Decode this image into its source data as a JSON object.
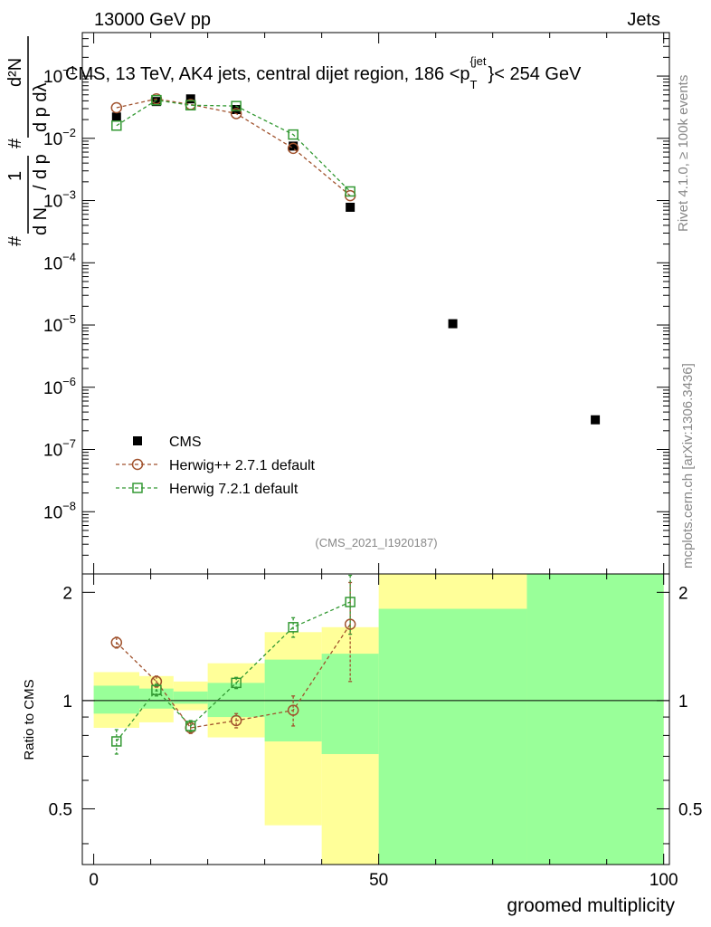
{
  "header": {
    "left": "13000 GeV pp",
    "right": "Jets"
  },
  "side": {
    "rivet": "Rivet 4.1.0, ≥ 100k events",
    "mcplots": "mcplots.cern.ch [arXiv:1306.3436]"
  },
  "analysis_tag": "(CMS_2021_I1920187)",
  "chart_data": {
    "type": "scatter",
    "title": "CMS, 13 TeV, AK4 jets, central dijet region, 186 < p_T^{jet} < 254 GeV",
    "title_parts": {
      "main": "CMS, 13 TeV, AK4 jets, central dijet region, 186 <p",
      "sub": "T",
      "sup": "{jet",
      "close": "}",
      "tail": "< 254 GeV"
    },
    "ylabel_parts": {
      "one": "1",
      "hash": "#",
      "dN": "d N",
      "slash": "/",
      "dpT": "d p",
      "sub": "T",
      "d2N": "d²N",
      "dpTdl": "d p  dλ"
    },
    "xlabel": "groomed multiplicity",
    "xlim": [
      -2,
      101
    ],
    "ylim_main": [
      1e-09,
      0.5
    ],
    "ylim_ratio": [
      0.35,
      2.25
    ],
    "xticks": [
      {
        "v": 0,
        "label": "0"
      },
      {
        "v": 50,
        "label": "50"
      },
      {
        "v": 100,
        "label": "100"
      }
    ],
    "yticks_main": [
      {
        "exp": -1,
        "label": "10",
        "sup": "−1"
      },
      {
        "exp": -2,
        "label": "10",
        "sup": "−2"
      },
      {
        "exp": -3,
        "label": "10",
        "sup": "−3"
      },
      {
        "exp": -4,
        "label": "10",
        "sup": "−4"
      },
      {
        "exp": -5,
        "label": "10",
        "sup": "−5"
      },
      {
        "exp": -6,
        "label": "10",
        "sup": "−6"
      },
      {
        "exp": -7,
        "label": "10",
        "sup": "−7"
      },
      {
        "exp": -8,
        "label": "10",
        "sup": "−8"
      }
    ],
    "yticks_ratio": [
      {
        "v": 0.5,
        "label": "0.5"
      },
      {
        "v": 1,
        "label": "1"
      },
      {
        "v": 2,
        "label": "2"
      }
    ],
    "ratio_ylabel": "Ratio to CMS",
    "bins": [
      {
        "lo": 0,
        "hi": 8,
        "center": 4,
        "yellow": [
          0.84,
          1.2
        ],
        "green": [
          0.92,
          1.1
        ]
      },
      {
        "lo": 8,
        "hi": 14,
        "center": 11,
        "yellow": [
          0.87,
          1.17
        ],
        "green": [
          0.95,
          1.08
        ]
      },
      {
        "lo": 14,
        "hi": 20,
        "center": 17,
        "yellow": [
          0.94,
          1.13
        ],
        "green": [
          0.98,
          1.06
        ]
      },
      {
        "lo": 20,
        "hi": 30,
        "center": 25,
        "yellow": [
          0.79,
          1.27
        ],
        "green": [
          0.9,
          1.12
        ]
      },
      {
        "lo": 30,
        "hi": 40,
        "center": 35,
        "yellow": [
          0.45,
          1.55
        ],
        "green": [
          0.77,
          1.3
        ]
      },
      {
        "lo": 40,
        "hi": 50,
        "center": 45,
        "yellow": [
          0.35,
          1.6
        ],
        "green": [
          0.71,
          1.35
        ]
      },
      {
        "lo": 50,
        "hi": 76,
        "center": 63,
        "yellow": [
          0.35,
          2.25
        ],
        "green": [
          0.35,
          1.8
        ]
      },
      {
        "lo": 76,
        "hi": 100,
        "center": 88,
        "yellow": [
          0.35,
          2.25
        ],
        "green": [
          0.35,
          2.25
        ]
      }
    ],
    "series": [
      {
        "name": "CMS",
        "marker": "filled-square",
        "color": "#000000",
        "x": [
          4,
          11,
          17,
          25,
          35,
          45,
          63,
          88
        ],
        "y": [
          0.022,
          0.039,
          0.043,
          0.029,
          0.0075,
          0.00078,
          1.05e-05,
          3e-07
        ]
      },
      {
        "name": "Herwig++ 2.7.1 default",
        "marker": "open-circle",
        "color": "#A0522D",
        "x": [
          4,
          11,
          17,
          25,
          35,
          45
        ],
        "y": [
          0.031,
          0.043,
          0.035,
          0.025,
          0.0069,
          0.0012
        ],
        "ratio": [
          1.45,
          1.13,
          0.84,
          0.88,
          0.94,
          1.63
        ],
        "ratio_err": [
          0.05,
          0.04,
          0.03,
          0.04,
          0.09,
          0.5
        ]
      },
      {
        "name": "Herwig 7.2.1 default",
        "marker": "open-square",
        "color": "#339933",
        "x": [
          4,
          11,
          17,
          25,
          35,
          45
        ],
        "y": [
          0.016,
          0.041,
          0.034,
          0.033,
          0.0115,
          0.0014
        ],
        "ratio": [
          0.77,
          1.07,
          0.85,
          1.12,
          1.6,
          1.88
        ],
        "ratio_err": [
          0.06,
          0.04,
          0.03,
          0.04,
          0.1,
          0.35
        ]
      }
    ]
  }
}
